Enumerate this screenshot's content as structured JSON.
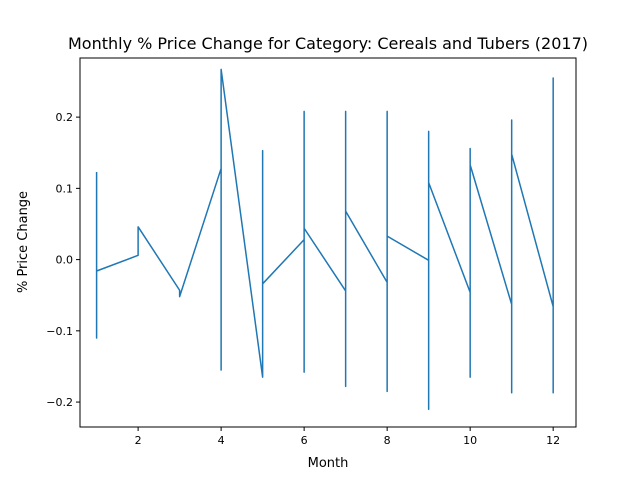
{
  "chart_data": {
    "type": "line",
    "title": "Monthly % Price Change for Category: Cereals and Tubers (2017)",
    "xlabel": "Month",
    "ylabel": "% Price Change",
    "xlim": [
      0.6,
      12.55
    ],
    "ylim": [
      -0.235,
      0.283
    ],
    "xticks": [
      2,
      4,
      6,
      8,
      10,
      12
    ],
    "yticks": [
      -0.2,
      -0.1,
      0.0,
      0.1,
      0.2
    ],
    "ytick_labels": [
      "−0.2",
      "−0.1",
      "0.0",
      "0.1",
      "0.2"
    ],
    "grid": false,
    "legend": "none",
    "series": [
      {
        "color": "#1f77b4",
        "points": [
          [
            1,
            0.123
          ],
          [
            1,
            -0.11
          ],
          [
            1,
            -0.016
          ],
          [
            2,
            0.006
          ],
          [
            2,
            0.046
          ],
          [
            3,
            -0.043
          ],
          [
            3,
            -0.052
          ],
          [
            4,
            0.128
          ],
          [
            4,
            -0.155
          ],
          [
            4,
            0.267
          ],
          [
            5,
            -0.165
          ],
          [
            5,
            0.153
          ],
          [
            5,
            -0.034
          ],
          [
            6,
            0.028
          ],
          [
            6,
            0.208
          ],
          [
            6,
            -0.158
          ],
          [
            6,
            0.044
          ],
          [
            7,
            -0.044
          ],
          [
            7,
            0.208
          ],
          [
            7,
            -0.178
          ],
          [
            7,
            0.068
          ],
          [
            8,
            -0.032
          ],
          [
            8,
            0.208
          ],
          [
            8,
            -0.185
          ],
          [
            8,
            0.033
          ],
          [
            9,
            -0.001
          ],
          [
            9,
            0.18
          ],
          [
            9,
            -0.21
          ],
          [
            9,
            0.108
          ],
          [
            10,
            -0.046
          ],
          [
            10,
            0.156
          ],
          [
            10,
            -0.165
          ],
          [
            10,
            0.133
          ],
          [
            11,
            -0.063
          ],
          [
            11,
            0.196
          ],
          [
            11,
            -0.187
          ],
          [
            11,
            0.148
          ],
          [
            12,
            -0.066
          ],
          [
            12,
            0.255
          ],
          [
            12,
            -0.187
          ],
          [
            12,
            -0.142
          ]
        ]
      }
    ]
  }
}
